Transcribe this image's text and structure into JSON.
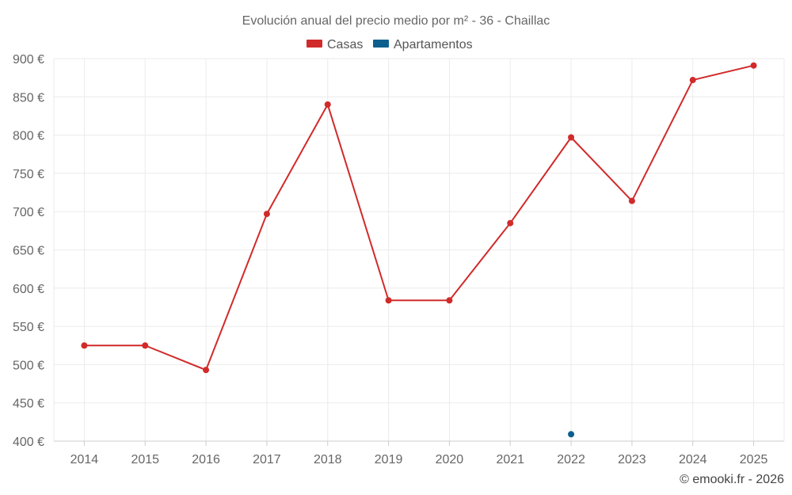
{
  "chart_data": {
    "type": "line",
    "title": "Evolución anual del precio medio por m² - 36 - Chaillac",
    "categories": [
      "2014",
      "2015",
      "2016",
      "2017",
      "2018",
      "2019",
      "2020",
      "2021",
      "2022",
      "2023",
      "2024",
      "2025"
    ],
    "series": [
      {
        "name": "Casas",
        "color": "#d12a2a",
        "values": [
          525,
          525,
          493,
          697,
          840,
          584,
          584,
          685,
          797,
          714,
          872,
          891
        ]
      },
      {
        "name": "Apartamentos",
        "color": "#0b5f8f",
        "values": [
          null,
          null,
          null,
          null,
          null,
          null,
          null,
          null,
          409,
          null,
          null,
          null
        ]
      }
    ],
    "yticks": [
      "400 €",
      "450 €",
      "500 €",
      "550 €",
      "600 €",
      "650 €",
      "700 €",
      "750 €",
      "800 €",
      "850 €",
      "900 €"
    ],
    "ylim": [
      400,
      900
    ],
    "grid": true,
    "legend_position": "top-center"
  },
  "credit": "© emooki.fr - 2026"
}
